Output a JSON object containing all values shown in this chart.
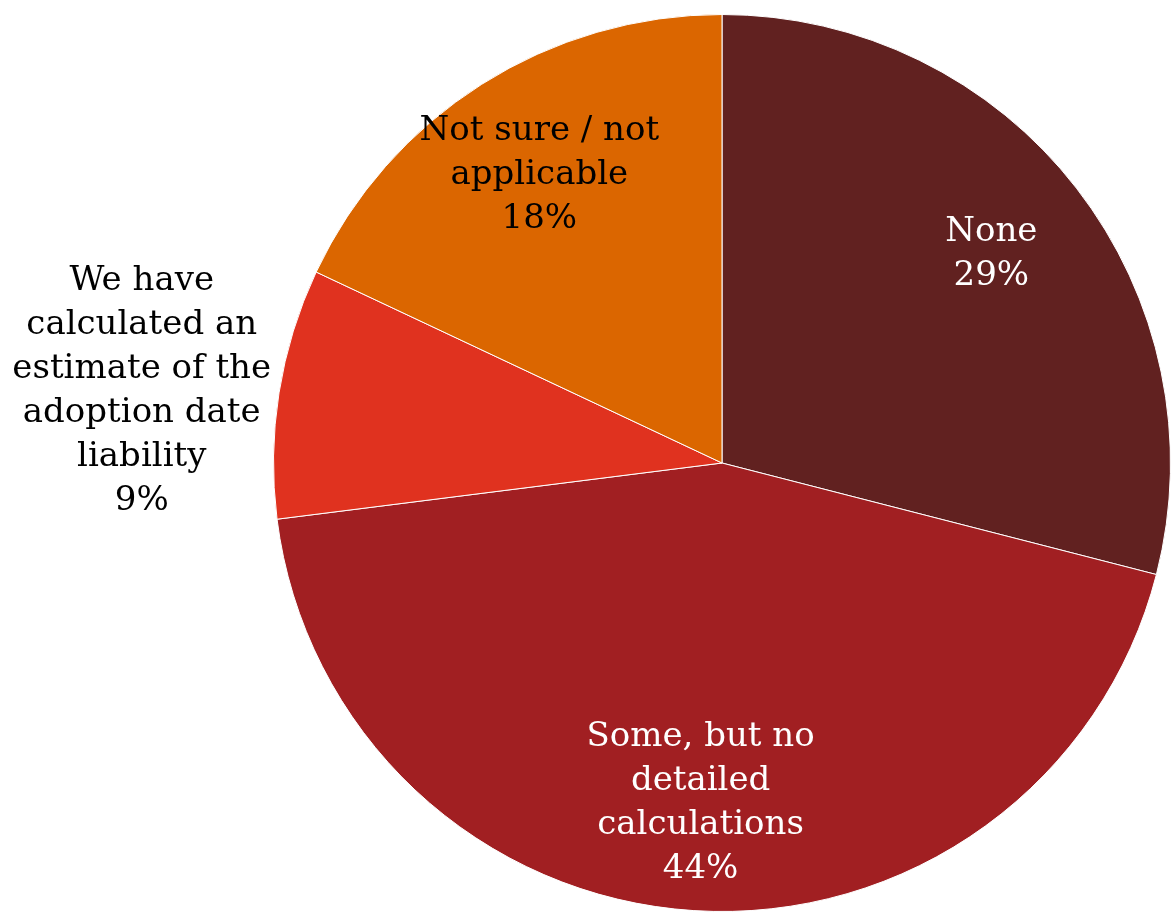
{
  "chart_data": {
    "type": "pie",
    "categories": [
      "None",
      "Some, but no detailed calculations",
      "We have calculated an estimate of the adoption date liability",
      "Not sure / not applicable"
    ],
    "values": [
      29,
      44,
      9,
      18
    ],
    "value_labels": [
      "29%",
      "44%",
      "9%",
      "18%"
    ],
    "colors": [
      "#612120",
      "#a11f22",
      "#e0321f",
      "#db6600"
    ],
    "legend": false
  }
}
